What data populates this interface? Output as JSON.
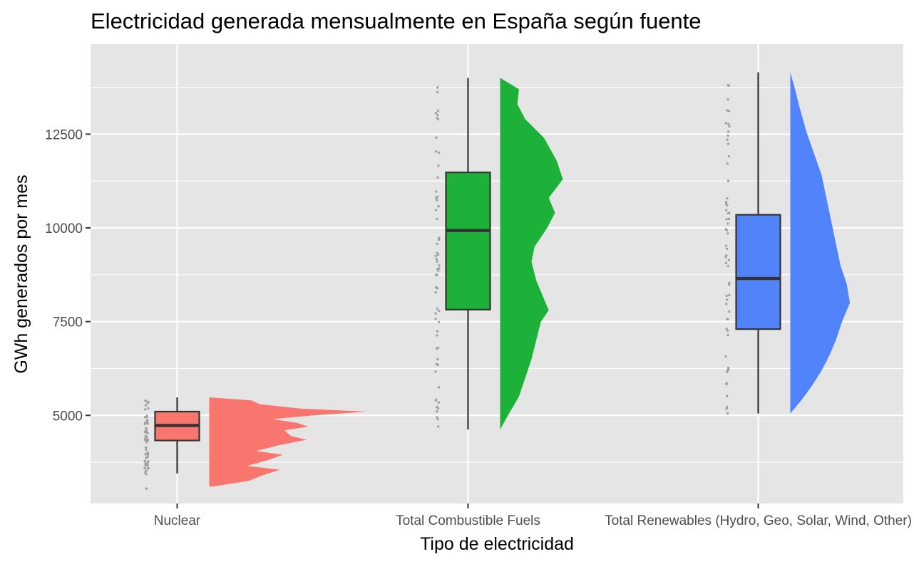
{
  "chart_data": {
    "type": "raincloud",
    "title": "Electricidad generada mensualmente en España según fuente",
    "xlabel": "Tipo de electricidad",
    "ylabel": "GWh generados por mes",
    "ylim": [
      2650,
      14900
    ],
    "y_ticks": [
      5000,
      7500,
      10000,
      12500
    ],
    "grid": true,
    "legend": "none",
    "categories": [
      "Nuclear",
      "Total Combustible Fuels",
      "Total Renewables (Hydro, Geo, Solar, Wind, Other)"
    ],
    "series": [
      {
        "category": "Nuclear",
        "color": "#F8766D",
        "box": {
          "lower_whisker": 3450,
          "q1": 4330,
          "median": 4730,
          "q3": 5100,
          "upper_whisker": 5480
        },
        "outliers": [
          3050
        ],
        "point_range": [
          3420,
          5480
        ],
        "density": [
          [
            3100,
            0.02
          ],
          [
            3250,
            0.25
          ],
          [
            3400,
            0.34
          ],
          [
            3550,
            0.45
          ],
          [
            3650,
            0.24
          ],
          [
            3800,
            0.37
          ],
          [
            3950,
            0.47
          ],
          [
            4050,
            0.3
          ],
          [
            4200,
            0.44
          ],
          [
            4350,
            0.62
          ],
          [
            4450,
            0.52
          ],
          [
            4600,
            0.48
          ],
          [
            4700,
            0.63
          ],
          [
            4800,
            0.56
          ],
          [
            4900,
            0.4
          ],
          [
            5000,
            0.67
          ],
          [
            5100,
            1.0
          ],
          [
            5180,
            0.58
          ],
          [
            5300,
            0.32
          ],
          [
            5400,
            0.27
          ],
          [
            5480,
            0.0
          ]
        ]
      },
      {
        "category": "Total Combustible Fuels",
        "color": "#1DB13A",
        "box": {
          "lower_whisker": 4620,
          "q1": 7820,
          "median": 9930,
          "q3": 11480,
          "upper_whisker": 14000
        },
        "outliers": [],
        "point_range": [
          4620,
          14000
        ],
        "density": [
          [
            4620,
            0.0
          ],
          [
            5000,
            0.05
          ],
          [
            5500,
            0.12
          ],
          [
            6000,
            0.16
          ],
          [
            6500,
            0.2
          ],
          [
            7000,
            0.23
          ],
          [
            7500,
            0.26
          ],
          [
            7800,
            0.31
          ],
          [
            8100,
            0.28
          ],
          [
            8600,
            0.23
          ],
          [
            9100,
            0.2
          ],
          [
            9500,
            0.22
          ],
          [
            10000,
            0.3
          ],
          [
            10400,
            0.35
          ],
          [
            10800,
            0.31
          ],
          [
            11300,
            0.4
          ],
          [
            11800,
            0.36
          ],
          [
            12400,
            0.28
          ],
          [
            12900,
            0.16
          ],
          [
            13300,
            0.11
          ],
          [
            13700,
            0.12
          ],
          [
            14000,
            0.0
          ]
        ]
      },
      {
        "category": "Total Renewables (Hydro, Geo, Solar, Wind, Other)",
        "color": "#5183FA",
        "box": {
          "lower_whisker": 5050,
          "q1": 7300,
          "median": 8650,
          "q3": 10350,
          "upper_whisker": 14150
        },
        "outliers": [],
        "point_range": [
          5050,
          14150
        ],
        "density": [
          [
            5050,
            0.0
          ],
          [
            5400,
            0.07
          ],
          [
            5800,
            0.14
          ],
          [
            6200,
            0.2
          ],
          [
            6600,
            0.25
          ],
          [
            7000,
            0.29
          ],
          [
            7500,
            0.33
          ],
          [
            8000,
            0.38
          ],
          [
            8500,
            0.36
          ],
          [
            9000,
            0.32
          ],
          [
            9600,
            0.29
          ],
          [
            10200,
            0.26
          ],
          [
            10800,
            0.23
          ],
          [
            11400,
            0.2
          ],
          [
            12000,
            0.15
          ],
          [
            12600,
            0.1
          ],
          [
            13200,
            0.06
          ],
          [
            13700,
            0.03
          ],
          [
            14150,
            0.0
          ]
        ]
      }
    ],
    "colors": {
      "panel_background": "#E5E5E5",
      "grid_line": "#FFFFFF",
      "box_outline": "#333333",
      "jitter_points": "#A0A0A0"
    }
  }
}
